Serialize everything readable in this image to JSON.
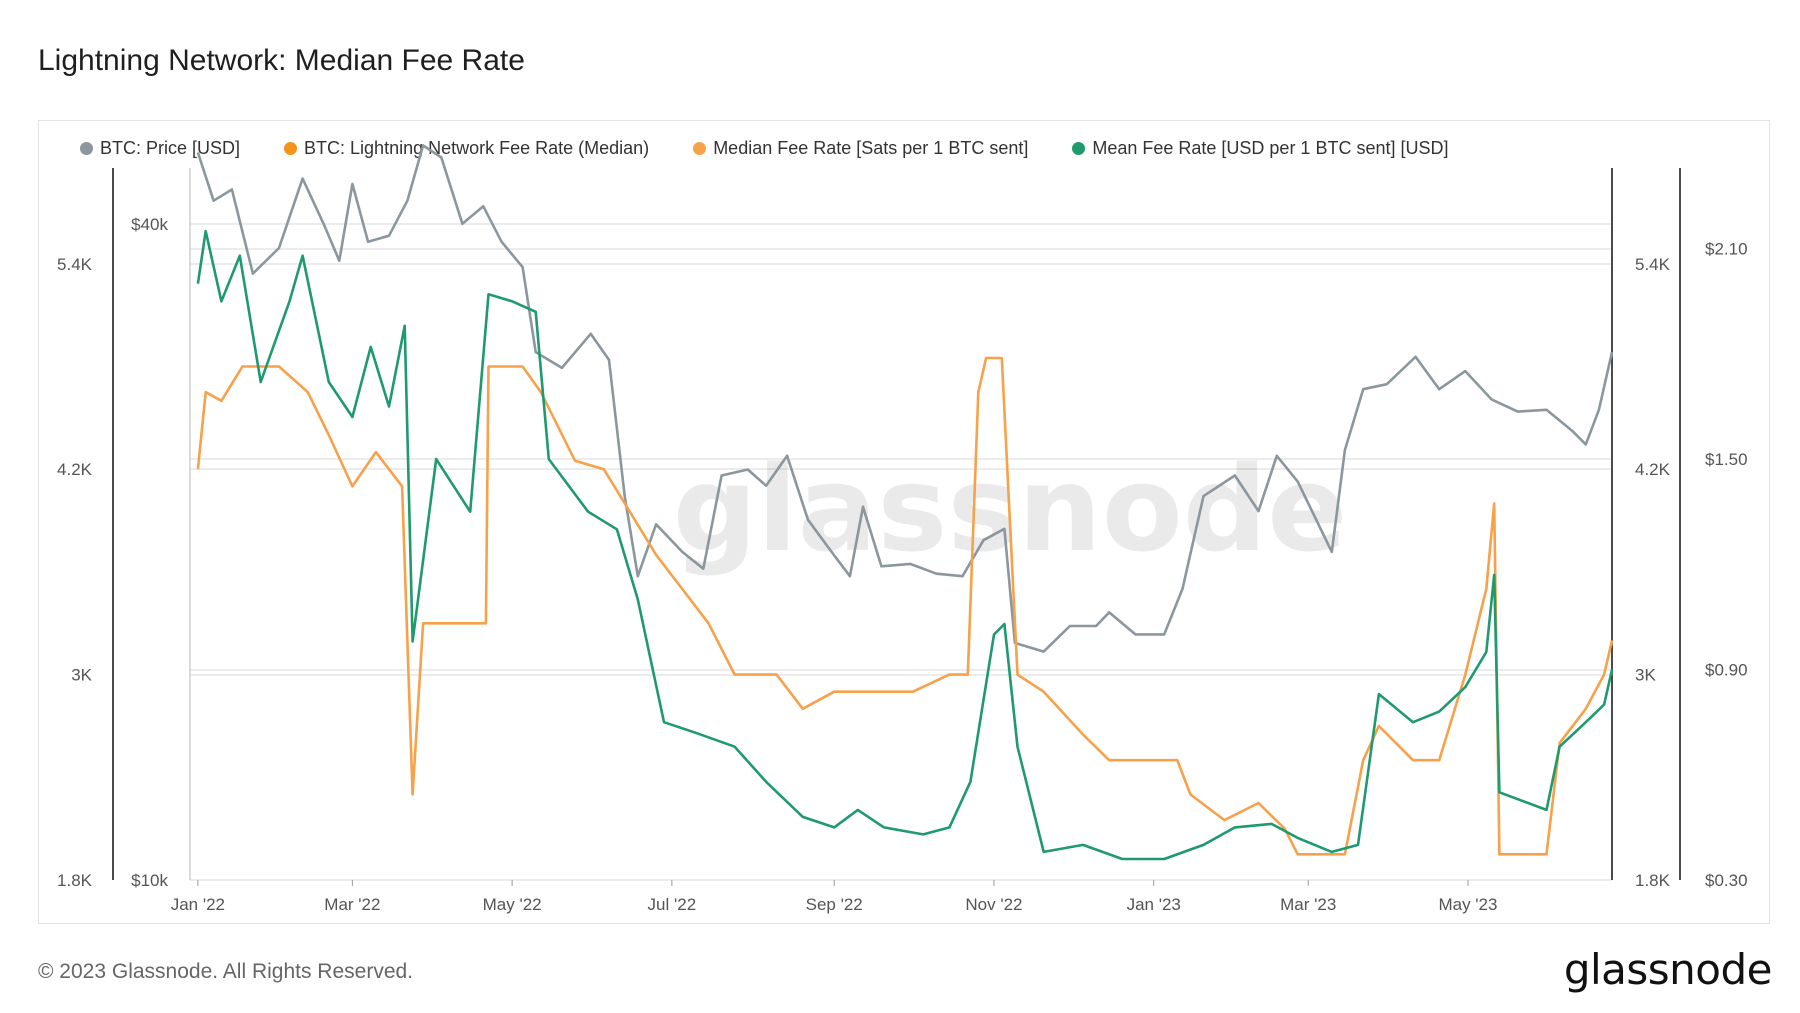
{
  "title": "Lightning Network: Median Fee Rate",
  "footer": "© 2023 Glassnode. All Rights Reserved.",
  "logo": "glassnode",
  "watermark": "glassnode",
  "colors": {
    "price": "#8b979c",
    "median_sats": "#f7a14a",
    "mean_usd": "#1f9a6e",
    "lightning_median": "#f7931a",
    "grid": "#e6e6e6",
    "axis": "#111111"
  },
  "legend": [
    {
      "label": "BTC: Price [USD]",
      "color": "#8b979c"
    },
    {
      "label": "BTC: Lightning Network Fee Rate (Median)",
      "color": "#f7931a"
    },
    {
      "label": "Median Fee Rate [Sats per 1 BTC sent]",
      "color": "#f7a14a"
    },
    {
      "label": "Mean Fee Rate [USD per 1 BTC sent] [USD]",
      "color": "#1f9a6e"
    }
  ],
  "chart_data": {
    "type": "line",
    "x_ticks": [
      "Jan '22",
      "Mar '22",
      "May '22",
      "Jul '22",
      "Sep '22",
      "Nov '22",
      "Jan '23",
      "Mar '23",
      "May '23"
    ],
    "x_tick_dates": [
      "2022-01-01",
      "2022-03-01",
      "2022-05-01",
      "2022-07-01",
      "2022-09-01",
      "2022-11-01",
      "2023-01-01",
      "2023-03-01",
      "2023-05-01"
    ],
    "x_range": [
      "2021-12-29",
      "2023-06-25"
    ],
    "grid": true,
    "legend_position": "top-left",
    "axes": {
      "sats": {
        "ticks": [
          "1.8K",
          "3K",
          "4.2K",
          "5.4K"
        ],
        "tick_values": [
          1800,
          3000,
          4200,
          5400
        ],
        "range": [
          1800,
          5960
        ],
        "position": "left-outer and right-inner"
      },
      "price": {
        "ticks": [
          "$10k",
          "$40k"
        ],
        "tick_values": [
          10000,
          40000
        ],
        "range": [
          10000,
          45000
        ],
        "scale": "log",
        "position": "left-inner"
      },
      "usd_fee": {
        "ticks": [
          "$0.30",
          "$0.90",
          "$1.50",
          "$2.10"
        ],
        "tick_values": [
          0.3,
          0.9,
          1.5,
          2.1
        ],
        "range": [
          0.3,
          2.33
        ],
        "position": "right-outer"
      }
    },
    "series": [
      {
        "name": "BTC: Price [USD]",
        "axis": "price",
        "points": [
          [
            "2022-01-01",
            46500
          ],
          [
            "2022-01-07",
            42000
          ],
          [
            "2022-01-14",
            43000
          ],
          [
            "2022-01-22",
            36000
          ],
          [
            "2022-02-01",
            38000
          ],
          [
            "2022-02-10",
            44000
          ],
          [
            "2022-02-18",
            40000
          ],
          [
            "2022-02-24",
            37000
          ],
          [
            "2022-03-01",
            43500
          ],
          [
            "2022-03-07",
            38500
          ],
          [
            "2022-03-15",
            39000
          ],
          [
            "2022-03-22",
            42000
          ],
          [
            "2022-03-28",
            47200
          ],
          [
            "2022-04-04",
            46000
          ],
          [
            "2022-04-12",
            40000
          ],
          [
            "2022-04-20",
            41500
          ],
          [
            "2022-04-27",
            38500
          ],
          [
            "2022-05-05",
            36500
          ],
          [
            "2022-05-10",
            30500
          ],
          [
            "2022-05-20",
            29500
          ],
          [
            "2022-05-31",
            31700
          ],
          [
            "2022-06-07",
            30000
          ],
          [
            "2022-06-13",
            22500
          ],
          [
            "2022-06-18",
            19000
          ],
          [
            "2022-06-25",
            21200
          ],
          [
            "2022-07-05",
            20000
          ],
          [
            "2022-07-13",
            19300
          ],
          [
            "2022-07-20",
            23500
          ],
          [
            "2022-07-30",
            23800
          ],
          [
            "2022-08-06",
            23000
          ],
          [
            "2022-08-14",
            24500
          ],
          [
            "2022-08-22",
            21400
          ],
          [
            "2022-08-31",
            20000
          ],
          [
            "2022-09-07",
            19000
          ],
          [
            "2022-09-12",
            22000
          ],
          [
            "2022-09-19",
            19400
          ],
          [
            "2022-09-30",
            19500
          ],
          [
            "2022-10-10",
            19100
          ],
          [
            "2022-10-20",
            19000
          ],
          [
            "2022-10-28",
            20500
          ],
          [
            "2022-11-05",
            21000
          ],
          [
            "2022-11-09",
            16500
          ],
          [
            "2022-11-20",
            16200
          ],
          [
            "2022-11-30",
            17100
          ],
          [
            "2022-12-10",
            17100
          ],
          [
            "2022-12-15",
            17600
          ],
          [
            "2022-12-25",
            16800
          ],
          [
            "2023-01-05",
            16800
          ],
          [
            "2023-01-12",
            18500
          ],
          [
            "2023-01-20",
            22500
          ],
          [
            "2023-02-01",
            23500
          ],
          [
            "2023-02-10",
            21800
          ],
          [
            "2023-02-17",
            24500
          ],
          [
            "2023-02-25",
            23200
          ],
          [
            "2023-03-10",
            20000
          ],
          [
            "2023-03-15",
            24800
          ],
          [
            "2023-03-22",
            28200
          ],
          [
            "2023-03-31",
            28500
          ],
          [
            "2023-04-11",
            30200
          ],
          [
            "2023-04-20",
            28200
          ],
          [
            "2023-04-30",
            29300
          ],
          [
            "2023-05-10",
            27600
          ],
          [
            "2023-05-20",
            26900
          ],
          [
            "2023-05-31",
            27000
          ],
          [
            "2023-06-10",
            25800
          ],
          [
            "2023-06-15",
            25100
          ],
          [
            "2023-06-20",
            27000
          ],
          [
            "2023-06-25",
            30500
          ]
        ]
      },
      {
        "name": "Median Fee Rate [Sats per 1 BTC sent]",
        "axis": "sats",
        "points": [
          [
            "2022-01-01",
            4200
          ],
          [
            "2022-01-04",
            4650
          ],
          [
            "2022-01-10",
            4600
          ],
          [
            "2022-01-18",
            4800
          ],
          [
            "2022-02-01",
            4800
          ],
          [
            "2022-02-12",
            4650
          ],
          [
            "2022-02-20",
            4400
          ],
          [
            "2022-03-01",
            4100
          ],
          [
            "2022-03-10",
            4300
          ],
          [
            "2022-03-20",
            4100
          ],
          [
            "2022-03-24",
            2300
          ],
          [
            "2022-03-28",
            3300
          ],
          [
            "2022-04-10",
            3300
          ],
          [
            "2022-04-21",
            3300
          ],
          [
            "2022-04-22",
            4800
          ],
          [
            "2022-05-05",
            4800
          ],
          [
            "2022-05-12",
            4650
          ],
          [
            "2022-05-25",
            4250
          ],
          [
            "2022-06-05",
            4200
          ],
          [
            "2022-06-15",
            3950
          ],
          [
            "2022-06-25",
            3700
          ],
          [
            "2022-07-05",
            3500
          ],
          [
            "2022-07-15",
            3300
          ],
          [
            "2022-07-25",
            3000
          ],
          [
            "2022-08-10",
            3000
          ],
          [
            "2022-08-20",
            2800
          ],
          [
            "2022-09-01",
            2900
          ],
          [
            "2022-09-15",
            2900
          ],
          [
            "2022-10-01",
            2900
          ],
          [
            "2022-10-15",
            3000
          ],
          [
            "2022-10-22",
            3000
          ],
          [
            "2022-10-26",
            4650
          ],
          [
            "2022-10-29",
            4850
          ],
          [
            "2022-11-04",
            4850
          ],
          [
            "2022-11-10",
            3000
          ],
          [
            "2022-11-20",
            2900
          ],
          [
            "2022-12-05",
            2650
          ],
          [
            "2022-12-15",
            2500
          ],
          [
            "2023-01-10",
            2500
          ],
          [
            "2023-01-15",
            2300
          ],
          [
            "2023-01-28",
            2150
          ],
          [
            "2023-02-10",
            2250
          ],
          [
            "2023-02-20",
            2100
          ],
          [
            "2023-02-25",
            1950
          ],
          [
            "2023-03-15",
            1950
          ],
          [
            "2023-03-22",
            2500
          ],
          [
            "2023-03-28",
            2700
          ],
          [
            "2023-04-10",
            2500
          ],
          [
            "2023-04-20",
            2500
          ],
          [
            "2023-04-30",
            3000
          ],
          [
            "2023-05-08",
            3500
          ],
          [
            "2023-05-11",
            4000
          ],
          [
            "2023-05-13",
            1950
          ],
          [
            "2023-05-31",
            1950
          ],
          [
            "2023-06-05",
            2600
          ],
          [
            "2023-06-15",
            2800
          ],
          [
            "2023-06-22",
            3000
          ],
          [
            "2023-06-25",
            3200
          ]
        ]
      },
      {
        "name": "Mean Fee Rate [USD per 1 BTC sent] [USD]",
        "axis": "usd_fee",
        "points": [
          [
            "2022-01-01",
            2.0
          ],
          [
            "2022-01-04",
            2.15
          ],
          [
            "2022-01-10",
            1.95
          ],
          [
            "2022-01-17",
            2.08
          ],
          [
            "2022-01-25",
            1.72
          ],
          [
            "2022-02-05",
            1.95
          ],
          [
            "2022-02-10",
            2.08
          ],
          [
            "2022-02-20",
            1.72
          ],
          [
            "2022-03-01",
            1.62
          ],
          [
            "2022-03-08",
            1.82
          ],
          [
            "2022-03-15",
            1.65
          ],
          [
            "2022-03-21",
            1.88
          ],
          [
            "2022-03-24",
            0.98
          ],
          [
            "2022-04-02",
            1.5
          ],
          [
            "2022-04-15",
            1.35
          ],
          [
            "2022-04-22",
            1.97
          ],
          [
            "2022-05-01",
            1.95
          ],
          [
            "2022-05-10",
            1.92
          ],
          [
            "2022-05-15",
            1.5
          ],
          [
            "2022-05-30",
            1.35
          ],
          [
            "2022-06-10",
            1.3
          ],
          [
            "2022-06-18",
            1.1
          ],
          [
            "2022-06-28",
            0.75
          ],
          [
            "2022-07-10",
            0.72
          ],
          [
            "2022-07-25",
            0.68
          ],
          [
            "2022-08-06",
            0.58
          ],
          [
            "2022-08-20",
            0.48
          ],
          [
            "2022-09-01",
            0.45
          ],
          [
            "2022-09-10",
            0.5
          ],
          [
            "2022-09-20",
            0.45
          ],
          [
            "2022-10-05",
            0.43
          ],
          [
            "2022-10-15",
            0.45
          ],
          [
            "2022-10-23",
            0.58
          ],
          [
            "2022-11-01",
            1.0
          ],
          [
            "2022-11-05",
            1.03
          ],
          [
            "2022-11-10",
            0.68
          ],
          [
            "2022-11-20",
            0.38
          ],
          [
            "2022-12-05",
            0.4
          ],
          [
            "2022-12-20",
            0.36
          ],
          [
            "2023-01-05",
            0.36
          ],
          [
            "2023-01-20",
            0.4
          ],
          [
            "2023-02-01",
            0.45
          ],
          [
            "2023-02-15",
            0.46
          ],
          [
            "2023-02-25",
            0.42
          ],
          [
            "2023-03-10",
            0.38
          ],
          [
            "2023-03-20",
            0.4
          ],
          [
            "2023-03-28",
            0.83
          ],
          [
            "2023-04-10",
            0.75
          ],
          [
            "2023-04-20",
            0.78
          ],
          [
            "2023-04-30",
            0.85
          ],
          [
            "2023-05-08",
            0.95
          ],
          [
            "2023-05-11",
            1.17
          ],
          [
            "2023-05-13",
            0.55
          ],
          [
            "2023-05-31",
            0.5
          ],
          [
            "2023-06-05",
            0.68
          ],
          [
            "2023-06-15",
            0.75
          ],
          [
            "2023-06-22",
            0.8
          ],
          [
            "2023-06-25",
            0.9
          ]
        ]
      }
    ]
  }
}
